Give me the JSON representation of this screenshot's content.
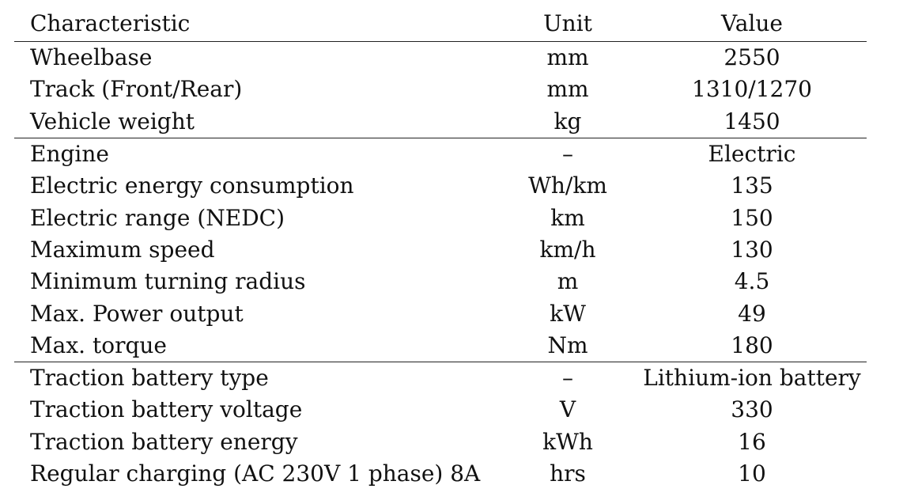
{
  "table": {
    "headers": {
      "characteristic": "Characteristic",
      "unit": "Unit",
      "value": "Value"
    },
    "rows": [
      {
        "characteristic": "Wheelbase",
        "unit": "mm",
        "value": "2550"
      },
      {
        "characteristic": "Track (Front/Rear)",
        "unit": "mm",
        "value": "1310/1270"
      },
      {
        "characteristic": "Vehicle weight",
        "unit": "kg",
        "value": "1450"
      },
      {
        "characteristic": "Engine",
        "unit": "–",
        "value": "Electric"
      },
      {
        "characteristic": "Electric energy consumption",
        "unit": "Wh/km",
        "value": "135"
      },
      {
        "characteristic": "Electric range (NEDC)",
        "unit": "km",
        "value": "150"
      },
      {
        "characteristic": "Maximum speed",
        "unit": "km/h",
        "value": "130"
      },
      {
        "characteristic": "Minimum turning radius",
        "unit": "m",
        "value": "4.5"
      },
      {
        "characteristic": "Max. Power output",
        "unit": "kW",
        "value": "49"
      },
      {
        "characteristic": "Max. torque",
        "unit": "Nm",
        "value": "180"
      },
      {
        "characteristic": "Traction battery type",
        "unit": "–",
        "value": "Lithium-ion battery"
      },
      {
        "characteristic": "Traction battery voltage",
        "unit": "V",
        "value": "330"
      },
      {
        "characteristic": "Traction battery energy",
        "unit": "kWh",
        "value": "16"
      },
      {
        "characteristic": "Regular charging (AC 230V 1 phase) 8A",
        "unit": "hrs",
        "value": "10"
      }
    ]
  }
}
